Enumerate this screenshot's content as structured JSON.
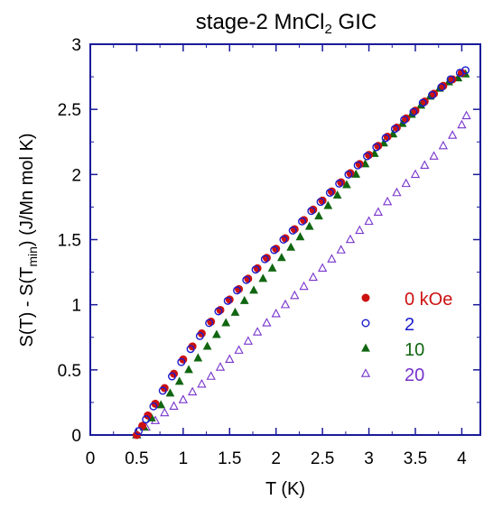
{
  "chart_data": {
    "type": "scatter",
    "title": "stage-2 MnCl2 GIC",
    "title_parts": {
      "pre": "stage-2 MnCl",
      "sub": "2",
      "post": " GIC"
    },
    "xlabel": "T (K)",
    "ylabel": "S(T) - S(Tmin) (J/Mn mol K)",
    "ylabel_parts": {
      "pre": "S(T) - S(T",
      "sub": "min",
      "post": ") (J/Mn mol K)"
    },
    "xlim": [
      0,
      4.2
    ],
    "ylim": [
      0,
      3
    ],
    "x_ticks": [
      "0",
      "0.5",
      "1",
      "1.5",
      "2",
      "2.5",
      "3",
      "3.5",
      "4"
    ],
    "y_ticks": [
      "0",
      "0.5",
      "1",
      "1.5",
      "2",
      "2.5",
      "3"
    ],
    "grid": false,
    "legend_position": "lower-right",
    "frame_color": "#1a1a9a",
    "series": [
      {
        "name": "0 kOe",
        "color": "#cc1111",
        "marker": "filled-circle",
        "points": [
          [
            0.5,
            0.0
          ],
          [
            0.56,
            0.07
          ],
          [
            0.62,
            0.15
          ],
          [
            0.7,
            0.24
          ],
          [
            0.8,
            0.36
          ],
          [
            0.9,
            0.47
          ],
          [
            1.0,
            0.58
          ],
          [
            1.1,
            0.68
          ],
          [
            1.2,
            0.78
          ],
          [
            1.3,
            0.87
          ],
          [
            1.4,
            0.96
          ],
          [
            1.5,
            1.04
          ],
          [
            1.6,
            1.12
          ],
          [
            1.7,
            1.2
          ],
          [
            1.8,
            1.28
          ],
          [
            1.9,
            1.36
          ],
          [
            2.0,
            1.43
          ],
          [
            2.1,
            1.51
          ],
          [
            2.2,
            1.58
          ],
          [
            2.3,
            1.65
          ],
          [
            2.4,
            1.73
          ],
          [
            2.5,
            1.8
          ],
          [
            2.6,
            1.87
          ],
          [
            2.7,
            1.94
          ],
          [
            2.8,
            2.01
          ],
          [
            2.9,
            2.08
          ],
          [
            3.0,
            2.15
          ],
          [
            3.1,
            2.22
          ],
          [
            3.2,
            2.29
          ],
          [
            3.3,
            2.36
          ],
          [
            3.4,
            2.43
          ],
          [
            3.5,
            2.49
          ],
          [
            3.6,
            2.56
          ],
          [
            3.7,
            2.62
          ],
          [
            3.8,
            2.68
          ],
          [
            3.9,
            2.73
          ],
          [
            4.0,
            2.78
          ]
        ]
      },
      {
        "name": "2",
        "color": "#1a1acc",
        "marker": "open-circle",
        "points": [
          [
            0.52,
            0.03
          ],
          [
            0.6,
            0.12
          ],
          [
            0.68,
            0.22
          ],
          [
            0.78,
            0.34
          ],
          [
            0.88,
            0.45
          ],
          [
            0.98,
            0.56
          ],
          [
            1.08,
            0.66
          ],
          [
            1.18,
            0.76
          ],
          [
            1.28,
            0.86
          ],
          [
            1.38,
            0.95
          ],
          [
            1.48,
            1.03
          ],
          [
            1.58,
            1.11
          ],
          [
            1.68,
            1.19
          ],
          [
            1.78,
            1.27
          ],
          [
            1.88,
            1.35
          ],
          [
            1.98,
            1.42
          ],
          [
            2.08,
            1.5
          ],
          [
            2.18,
            1.57
          ],
          [
            2.28,
            1.64
          ],
          [
            2.38,
            1.72
          ],
          [
            2.48,
            1.79
          ],
          [
            2.58,
            1.86
          ],
          [
            2.68,
            1.93
          ],
          [
            2.78,
            2.0
          ],
          [
            2.88,
            2.07
          ],
          [
            2.98,
            2.14
          ],
          [
            3.08,
            2.21
          ],
          [
            3.18,
            2.28
          ],
          [
            3.28,
            2.35
          ],
          [
            3.38,
            2.42
          ],
          [
            3.48,
            2.48
          ],
          [
            3.58,
            2.55
          ],
          [
            3.68,
            2.61
          ],
          [
            3.78,
            2.67
          ],
          [
            3.88,
            2.73
          ],
          [
            3.98,
            2.78
          ],
          [
            4.04,
            2.8
          ]
        ]
      },
      {
        "name": "10",
        "color": "#116611",
        "marker": "filled-triangle",
        "points": [
          [
            0.5,
            0.0
          ],
          [
            0.58,
            0.06
          ],
          [
            0.66,
            0.13
          ],
          [
            0.76,
            0.23
          ],
          [
            0.86,
            0.32
          ],
          [
            0.96,
            0.41
          ],
          [
            1.06,
            0.5
          ],
          [
            1.16,
            0.59
          ],
          [
            1.26,
            0.68
          ],
          [
            1.36,
            0.77
          ],
          [
            1.46,
            0.86
          ],
          [
            1.56,
            0.94
          ],
          [
            1.66,
            1.03
          ],
          [
            1.76,
            1.11
          ],
          [
            1.86,
            1.2
          ],
          [
            1.96,
            1.28
          ],
          [
            2.06,
            1.36
          ],
          [
            2.16,
            1.44
          ],
          [
            2.26,
            1.52
          ],
          [
            2.36,
            1.6
          ],
          [
            2.46,
            1.68
          ],
          [
            2.56,
            1.76
          ],
          [
            2.66,
            1.84
          ],
          [
            2.76,
            1.92
          ],
          [
            2.86,
            2.0
          ],
          [
            2.96,
            2.08
          ],
          [
            3.06,
            2.16
          ],
          [
            3.16,
            2.24
          ],
          [
            3.26,
            2.31
          ],
          [
            3.36,
            2.39
          ],
          [
            3.46,
            2.46
          ],
          [
            3.56,
            2.53
          ],
          [
            3.66,
            2.6
          ],
          [
            3.76,
            2.66
          ],
          [
            3.86,
            2.71
          ],
          [
            3.96,
            2.74
          ],
          [
            4.04,
            2.77
          ]
        ]
      },
      {
        "name": "20",
        "color": "#7733cc",
        "marker": "open-triangle",
        "points": [
          [
            0.5,
            0.0
          ],
          [
            0.6,
            0.06
          ],
          [
            0.7,
            0.11
          ],
          [
            0.8,
            0.17
          ],
          [
            0.9,
            0.22
          ],
          [
            1.0,
            0.27
          ],
          [
            1.1,
            0.33
          ],
          [
            1.2,
            0.39
          ],
          [
            1.3,
            0.45
          ],
          [
            1.4,
            0.52
          ],
          [
            1.5,
            0.58
          ],
          [
            1.6,
            0.65
          ],
          [
            1.7,
            0.72
          ],
          [
            1.8,
            0.79
          ],
          [
            1.9,
            0.86
          ],
          [
            2.0,
            0.93
          ],
          [
            2.1,
            1.0
          ],
          [
            2.2,
            1.07
          ],
          [
            2.3,
            1.14
          ],
          [
            2.4,
            1.21
          ],
          [
            2.5,
            1.28
          ],
          [
            2.6,
            1.35
          ],
          [
            2.7,
            1.42
          ],
          [
            2.8,
            1.5
          ],
          [
            2.9,
            1.57
          ],
          [
            3.0,
            1.64
          ],
          [
            3.1,
            1.71
          ],
          [
            3.2,
            1.79
          ],
          [
            3.3,
            1.86
          ],
          [
            3.4,
            1.93
          ],
          [
            3.5,
            2.0
          ],
          [
            3.6,
            2.07
          ],
          [
            3.7,
            2.14
          ],
          [
            3.8,
            2.22
          ],
          [
            3.9,
            2.3
          ],
          [
            4.0,
            2.38
          ],
          [
            4.05,
            2.45
          ]
        ]
      }
    ]
  }
}
